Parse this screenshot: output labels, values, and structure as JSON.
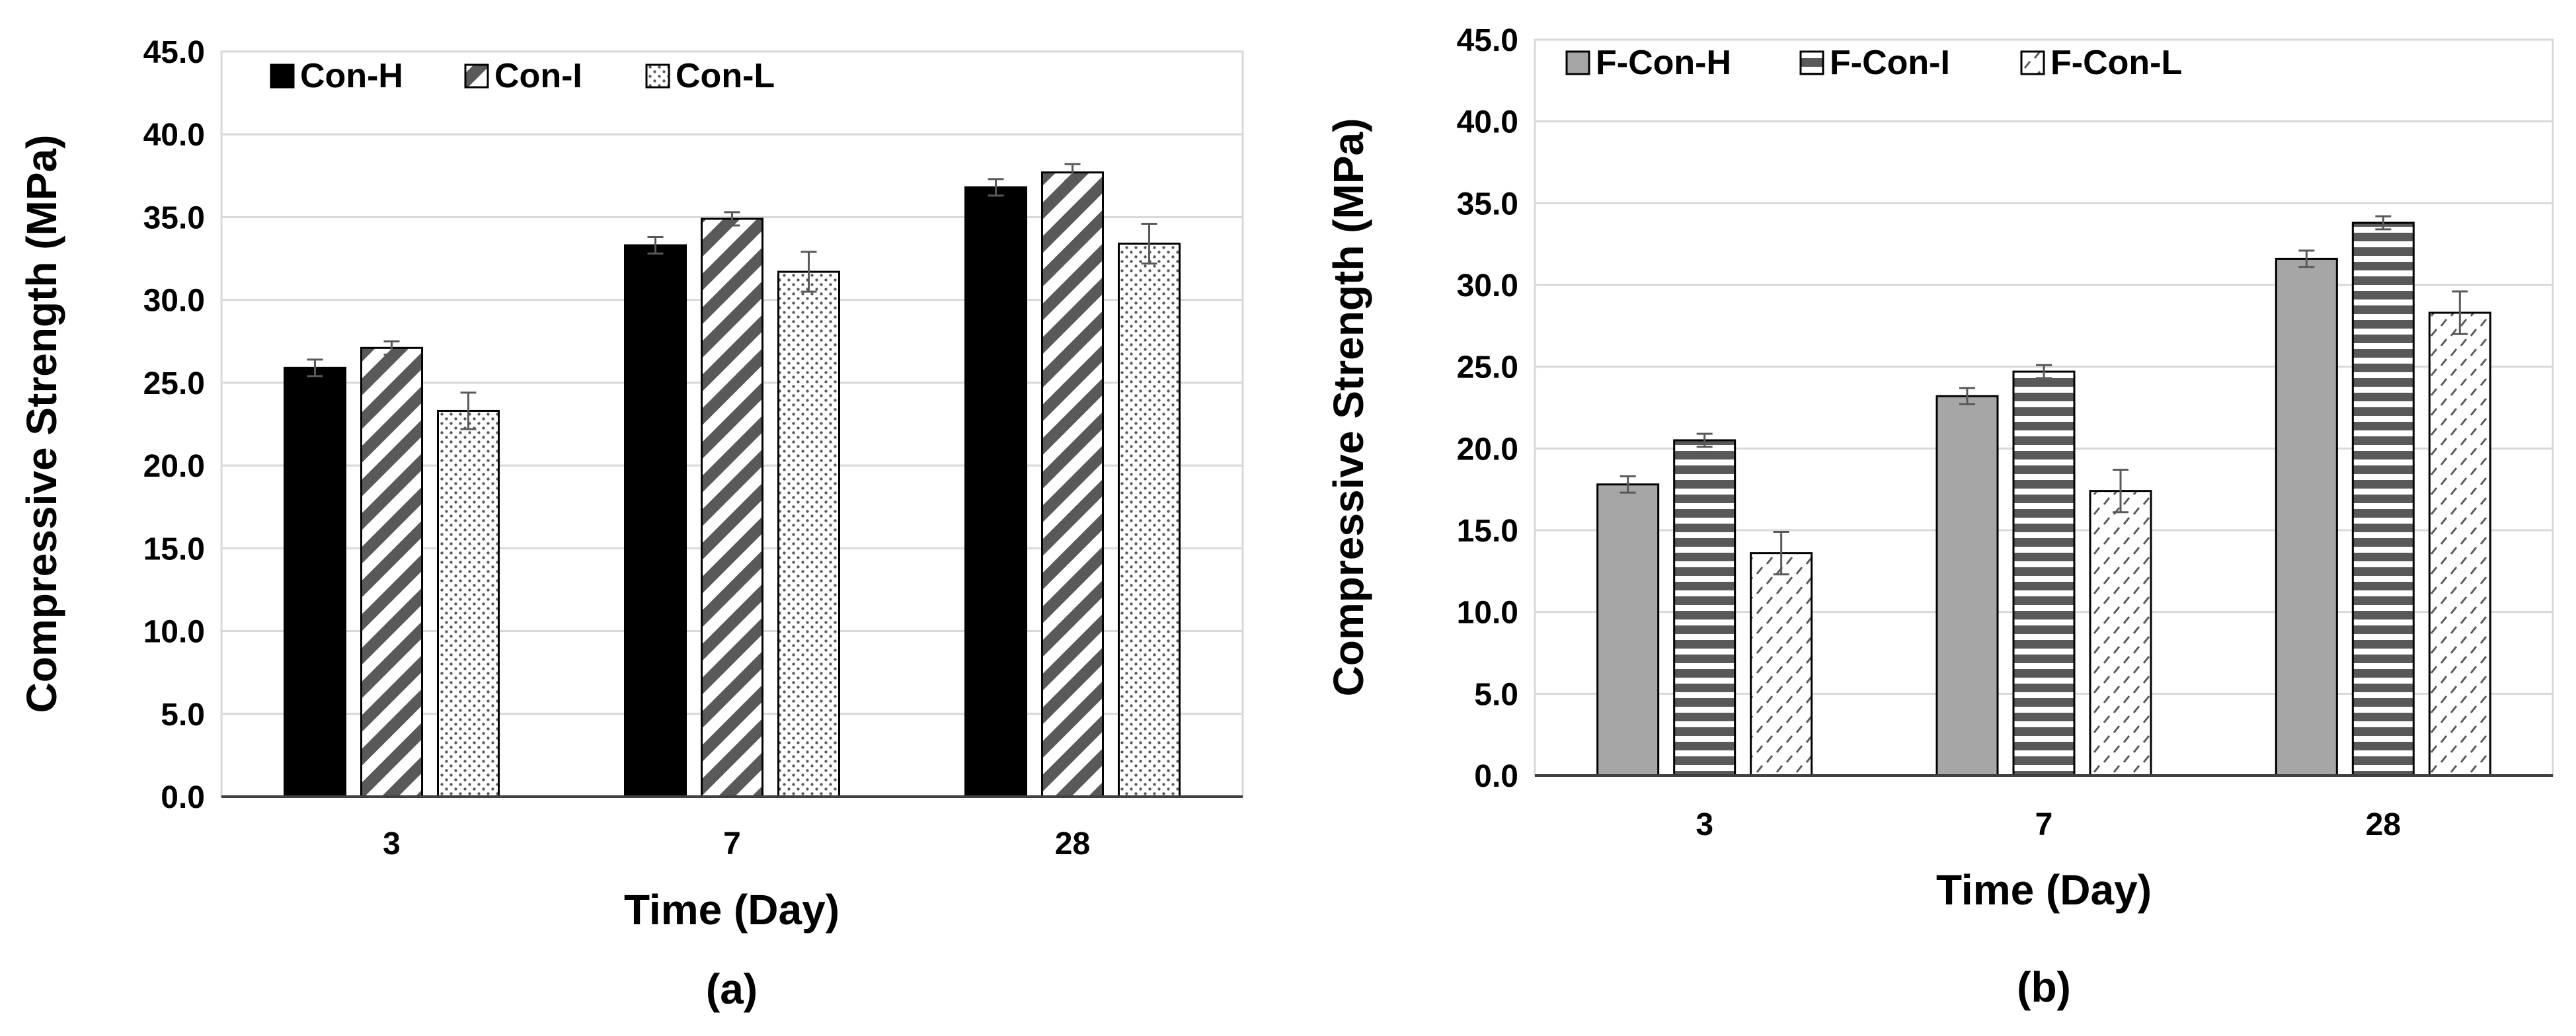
{
  "chart_data": [
    {
      "type": "bar",
      "panel_label": "(a)",
      "title": "",
      "categories": [
        "3",
        "7",
        "28"
      ],
      "xlabel": "Time (Day)",
      "ylabel": "Compressive Strength (MPa)",
      "ylim": [
        0,
        45
      ],
      "ytick_labels": [
        "0.0",
        "5.0",
        "10.0",
        "15.0",
        "20.0",
        "25.0",
        "30.0",
        "35.0",
        "40.0",
        "45.0"
      ],
      "grid": true,
      "legend_position": "top-left",
      "series": [
        {
          "name": "Con-H",
          "values": [
            25.9,
            33.3,
            36.8
          ],
          "errors": [
            0.5,
            0.5,
            0.5
          ],
          "fill": "solid-black"
        },
        {
          "name": "Con-I",
          "values": [
            27.1,
            34.9,
            37.7
          ],
          "errors": [
            0.4,
            0.4,
            0.5
          ],
          "fill": "diagonal-stripe"
        },
        {
          "name": "Con-L",
          "values": [
            23.3,
            31.7,
            33.4
          ],
          "errors": [
            1.1,
            1.2,
            1.2
          ],
          "fill": "dots"
        }
      ]
    },
    {
      "type": "bar",
      "panel_label": "(b)",
      "title": "",
      "categories": [
        "3",
        "7",
        "28"
      ],
      "xlabel": "Time (Day)",
      "ylabel": "Compressive Strength (MPa)",
      "ylim": [
        0,
        45
      ],
      "ytick_labels": [
        "0.0",
        "5.0",
        "10.0",
        "15.0",
        "20.0",
        "25.0",
        "30.0",
        "35.0",
        "40.0",
        "45.0"
      ],
      "grid": true,
      "legend_position": "top-left",
      "series": [
        {
          "name": "F-Con-H",
          "values": [
            17.8,
            23.2,
            31.6
          ],
          "errors": [
            0.5,
            0.5,
            0.5
          ],
          "fill": "solid-gray"
        },
        {
          "name": "F-Con-I",
          "values": [
            20.5,
            24.7,
            33.8
          ],
          "errors": [
            0.4,
            0.4,
            0.4
          ],
          "fill": "horizontal-stripe"
        },
        {
          "name": "F-Con-L",
          "values": [
            13.6,
            17.4,
            28.3
          ],
          "errors": [
            1.3,
            1.3,
            1.3
          ],
          "fill": "dashes"
        }
      ]
    }
  ]
}
